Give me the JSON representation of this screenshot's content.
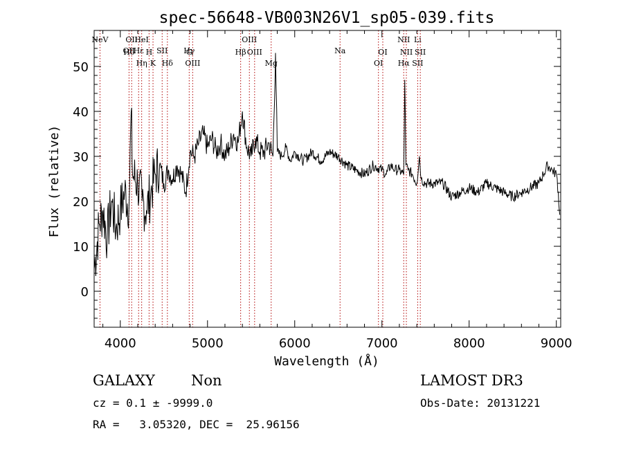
{
  "chart_data": {
    "type": "line",
    "title": "spec-56648-VB003N26V1_sp05-039.fits",
    "xlabel": "Wavelength (Å)",
    "ylabel": "Flux (relative)",
    "xlim": [
      3700,
      9050
    ],
    "ylim": [
      -8,
      58
    ],
    "xticks": [
      4000,
      5000,
      6000,
      7000,
      8000,
      9000
    ],
    "yticks": [
      0,
      10,
      20,
      30,
      40,
      50
    ],
    "series": [
      {
        "name": "spectrum",
        "x": [
          3700,
          3760,
          3800,
          3850,
          3900,
          3950,
          4000,
          4050,
          4100,
          4125,
          4140,
          4200,
          4250,
          4300,
          4350,
          4400,
          4450,
          4500,
          4550,
          4600,
          4650,
          4700,
          4750,
          4800,
          4850,
          4900,
          4950,
          5000,
          5050,
          5100,
          5150,
          5200,
          5250,
          5300,
          5350,
          5400,
          5450,
          5500,
          5550,
          5600,
          5650,
          5700,
          5750,
          5780,
          5800,
          5850,
          5900,
          5950,
          6000,
          6100,
          6200,
          6300,
          6400,
          6500,
          6600,
          6700,
          6800,
          6900,
          7000,
          7050,
          7100,
          7150,
          7200,
          7250,
          7262,
          7275,
          7300,
          7350,
          7400,
          7430,
          7450,
          7500,
          7600,
          7700,
          7800,
          7900,
          8000,
          8100,
          8200,
          8300,
          8400,
          8500,
          8600,
          8700,
          8800,
          8850,
          8900,
          8950,
          9000,
          9010,
          9040
        ],
        "y": [
          5,
          15,
          18,
          12,
          20,
          14,
          18,
          22,
          19,
          40,
          26,
          24,
          20,
          18,
          22,
          26,
          28,
          24,
          27,
          25,
          28,
          26,
          22,
          31,
          30,
          33,
          35,
          32,
          34,
          31,
          33,
          30,
          32,
          35,
          33,
          40,
          32,
          30,
          34,
          31,
          31,
          33,
          30,
          53,
          31,
          30,
          32,
          29,
          31,
          29,
          31,
          29,
          31,
          30,
          28,
          27,
          26,
          28,
          27,
          26,
          28,
          27,
          27,
          26,
          47,
          28,
          27,
          26,
          24,
          30,
          25,
          24,
          24,
          24,
          21,
          22,
          23,
          22,
          24,
          23,
          22,
          21,
          22,
          23,
          24,
          26,
          28,
          27,
          26,
          25,
          17
        ]
      }
    ],
    "lines": [
      {
        "wl": 3767,
        "top": "NeV",
        "bottom": ""
      },
      {
        "wl": 4100,
        "top": "OII",
        "bottom": "Hδ"
      },
      {
        "wl": 4130,
        "top": "OII",
        "bottom": ""
      },
      {
        "wl": 4210,
        "top": "Hε",
        "bottom": ""
      },
      {
        "wl": 4245,
        "top": "HeI",
        "bottom": "Hη"
      },
      {
        "wl": 4330,
        "top": "",
        "bottom": "H"
      },
      {
        "wl": 4375,
        "top": "",
        "bottom": "K"
      },
      {
        "wl": 4480,
        "top": "SII",
        "bottom": ""
      },
      {
        "wl": 4540,
        "top": "",
        "bottom": "Hδ"
      },
      {
        "wl": 4790,
        "top": "Hγ",
        "bottom": "G"
      },
      {
        "wl": 4830,
        "top": "",
        "bottom": "OIII"
      },
      {
        "wl": 5380,
        "top": "",
        "bottom": "Hβ"
      },
      {
        "wl": 5480,
        "top": "OIII",
        "bottom": ""
      },
      {
        "wl": 5540,
        "top": "",
        "bottom": "OIII"
      },
      {
        "wl": 5730,
        "top": "",
        "bottom": "Mg"
      },
      {
        "wl": 6520,
        "top": "Na",
        "bottom": ""
      },
      {
        "wl": 6960,
        "top": "",
        "bottom": "OI"
      },
      {
        "wl": 7010,
        "top": "",
        "bottom": "OI"
      },
      {
        "wl": 7250,
        "top": "NII",
        "bottom": "Hα"
      },
      {
        "wl": 7280,
        "top": "",
        "bottom": "NII"
      },
      {
        "wl": 7410,
        "top": "Li",
        "bottom": "SII"
      },
      {
        "wl": 7440,
        "top": "",
        "bottom": "SII"
      }
    ]
  },
  "info": {
    "class": "GALAXY",
    "subclass": "Non",
    "cz": "cz = 0.1 ± -9999.0",
    "coords": "RA =   3.05320, DEC =  25.96156",
    "survey": "LAMOST DR3",
    "obs_date": "Obs-Date: 20131221"
  }
}
